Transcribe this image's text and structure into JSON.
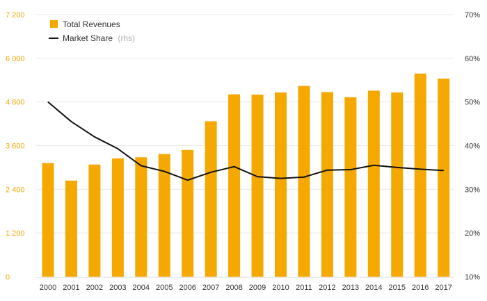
{
  "chart_data": {
    "type": "bar",
    "categories": [
      "2000",
      "2001",
      "2002",
      "2003",
      "2004",
      "2005",
      "2006",
      "2007",
      "2008",
      "2009",
      "2010",
      "2011",
      "2012",
      "2013",
      "2014",
      "2015",
      "2016",
      "2017"
    ],
    "series": [
      {
        "name": "Total Revenues",
        "axis": "left",
        "type": "bar",
        "color": "#f5a800",
        "values": [
          3120,
          2640,
          3080,
          3250,
          3280,
          3370,
          3480,
          4270,
          5010,
          5000,
          5060,
          5240,
          5070,
          4930,
          5110,
          5060,
          5580,
          5440
        ]
      },
      {
        "name": "Market Share",
        "name_suffix": "(rhs)",
        "axis": "right",
        "type": "line",
        "color": "#111111",
        "values": [
          50.0,
          45.5,
          42.0,
          39.3,
          35.4,
          34.1,
          32.1,
          33.9,
          35.2,
          32.9,
          32.5,
          32.8,
          34.4,
          34.5,
          35.5,
          35.0,
          34.6,
          34.3
        ]
      }
    ],
    "y_left": {
      "min": 0,
      "max": 7200,
      "ticks": [
        "0",
        "1 200",
        "2 400",
        "3 600",
        "4 800",
        "6 000",
        "7 200"
      ],
      "tick_values": [
        0,
        1200,
        2400,
        3600,
        4800,
        6000,
        7200
      ]
    },
    "y_right": {
      "min": 10,
      "max": 70,
      "ticks": [
        "10%",
        "20%",
        "30%",
        "40%",
        "50%",
        "60%",
        "70%"
      ],
      "tick_values": [
        10,
        20,
        30,
        40,
        50,
        60,
        70
      ]
    },
    "grid": true,
    "legend_position": "top-left"
  }
}
